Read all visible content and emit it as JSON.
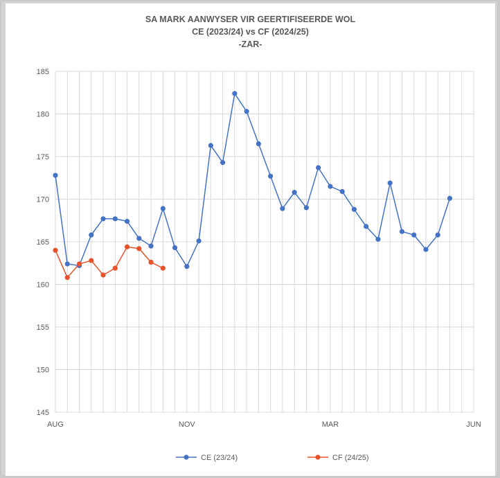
{
  "chart_data": {
    "type": "line",
    "title": "SA MARK AANWYSER VIR GEERTIFISEERDE WOL",
    "subtitle": "CE (2023/24) vs CF (2024/25)",
    "subtitle2": "-ZAR-",
    "xlabel": "",
    "ylabel": "",
    "ylim": [
      145,
      185
    ],
    "yticks": [
      145,
      150,
      155,
      160,
      165,
      170,
      175,
      180,
      185
    ],
    "x_tick_labels": [
      {
        "index": 0,
        "label": "AUG"
      },
      {
        "index": 11,
        "label": "NOV"
      },
      {
        "index": 23,
        "label": "MAR"
      },
      {
        "index": 35,
        "label": "JUN"
      }
    ],
    "n_points": 36,
    "grid": true,
    "legend_position": "bottom",
    "series": [
      {
        "name": "CE (23/24)",
        "color": "#4472c4",
        "values": [
          172.8,
          162.4,
          162.2,
          165.8,
          167.7,
          167.7,
          167.4,
          165.4,
          164.5,
          168.9,
          164.3,
          162.1,
          165.1,
          176.3,
          174.3,
          182.4,
          180.3,
          176.5,
          172.7,
          168.9,
          170.8,
          169.0,
          173.7,
          171.5,
          170.9,
          168.8,
          166.8,
          165.3,
          171.9,
          166.2,
          165.8,
          164.1,
          165.8,
          170.1
        ]
      },
      {
        "name": "CF (24/25)",
        "color": "#e8532b",
        "values": [
          164.0,
          160.8,
          162.4,
          162.8,
          161.1,
          161.9,
          164.4,
          164.2,
          162.6,
          161.9
        ]
      }
    ]
  }
}
